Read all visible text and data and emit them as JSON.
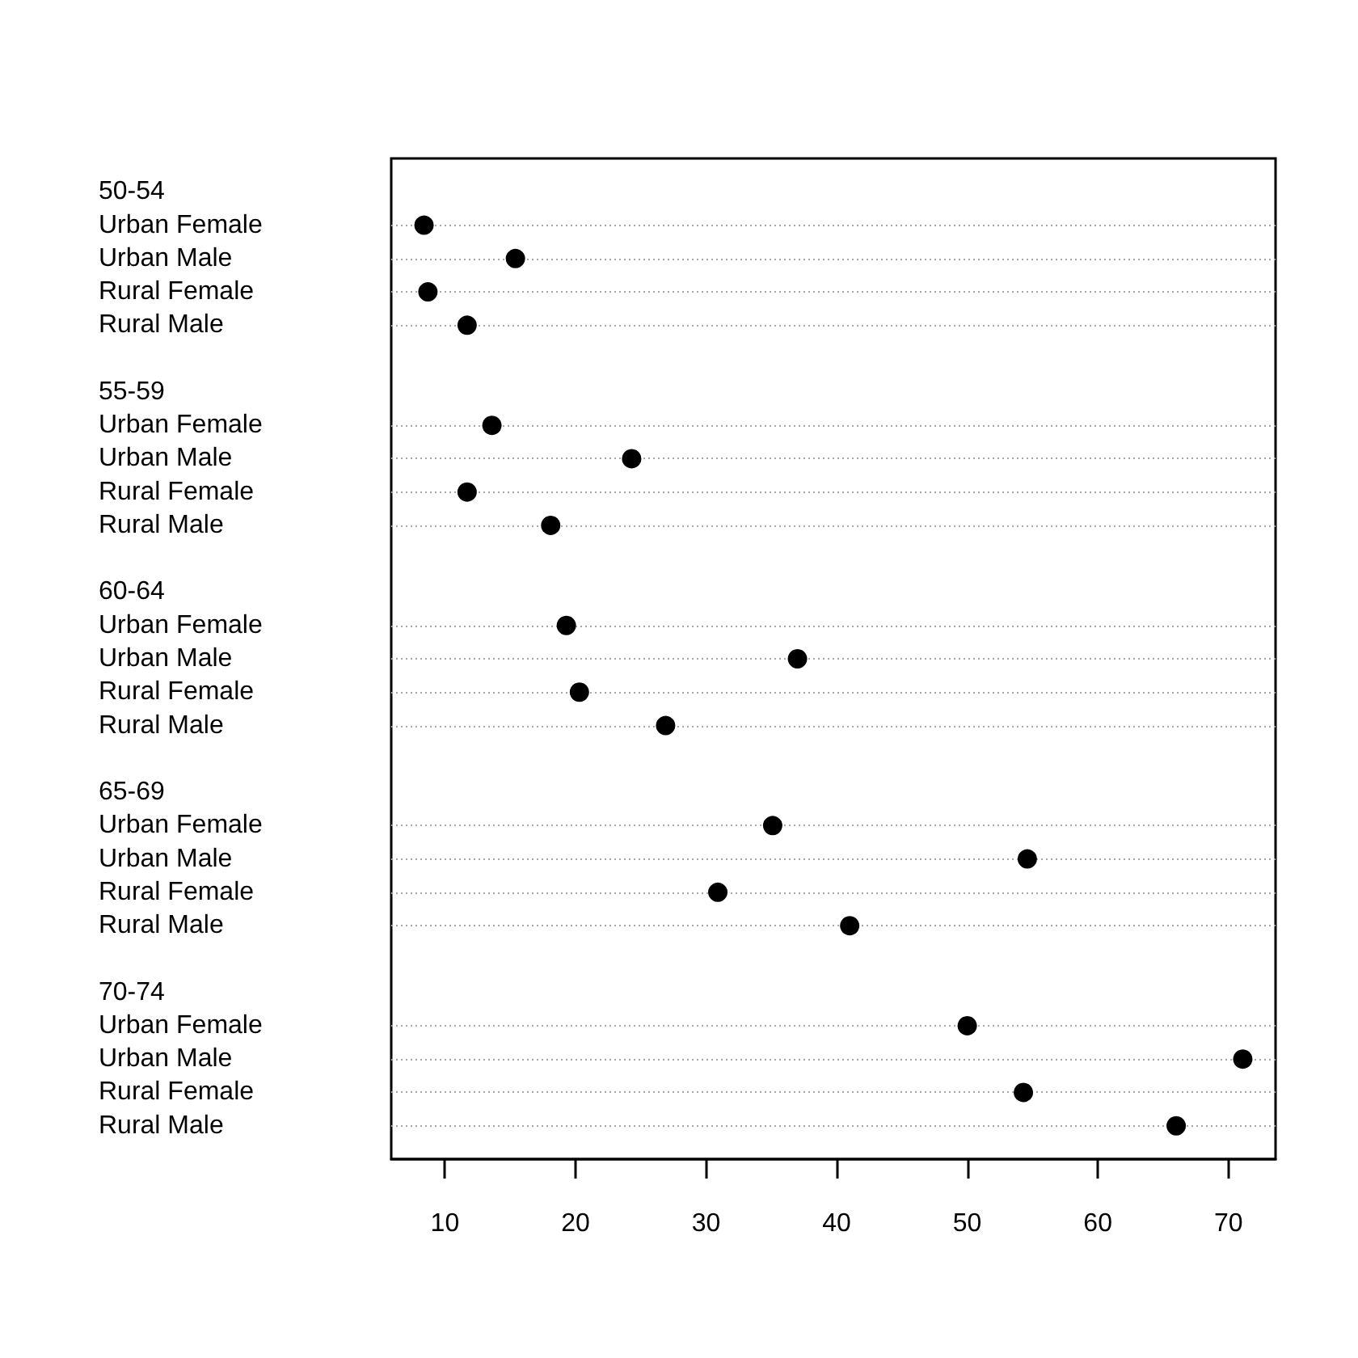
{
  "chart_data": {
    "type": "scatter",
    "orientation": "horizontal",
    "categories": [
      "50-54",
      "Urban Female",
      "Urban Male",
      "Rural Female",
      "Rural Male",
      null,
      "55-59",
      "Urban Female",
      "Urban Male",
      "Rural Female",
      "Rural Male",
      null,
      "60-64",
      "Urban Female",
      "Urban Male",
      "Rural Female",
      "Rural Male",
      null,
      "65-69",
      "Urban Female",
      "Urban Male",
      "Rural Female",
      "Rural Male",
      null,
      "70-74",
      "Urban Female",
      "Urban Male",
      "Rural Female",
      "Rural Male"
    ],
    "values": [
      null,
      8.4,
      15.4,
      8.7,
      11.7,
      null,
      null,
      13.6,
      24.3,
      11.7,
      18.1,
      null,
      null,
      19.3,
      37.0,
      20.3,
      26.9,
      null,
      null,
      35.1,
      54.6,
      30.9,
      41.0,
      null,
      null,
      50.0,
      71.1,
      54.3,
      66.0
    ],
    "color": "#000000",
    "marker": "circle",
    "grid": "y",
    "xlim": [
      5.89,
      73.61
    ],
    "xticks": [
      10,
      20,
      30,
      40,
      50,
      60,
      70
    ]
  }
}
